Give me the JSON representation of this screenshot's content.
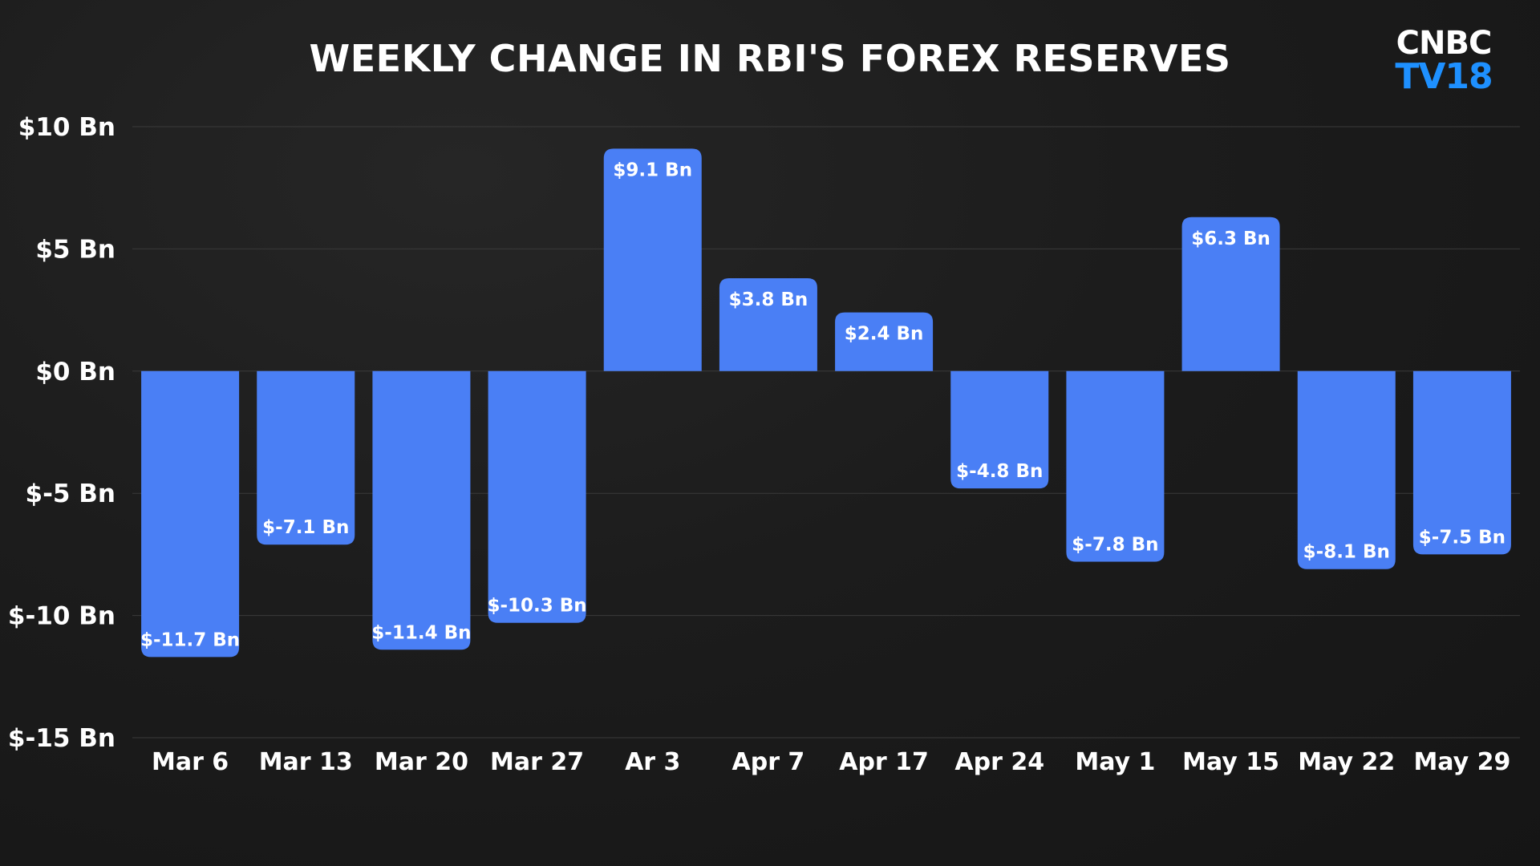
{
  "header": {
    "title": "WEEKLY CHANGE IN RBI'S FOREX RESERVES",
    "logo_line1": "CNBC",
    "logo_line2": "TV18",
    "logo_colors": {
      "line1": "#ffffff",
      "line2": "#1e90ff"
    }
  },
  "chart_data": {
    "type": "bar",
    "title": "WEEKLY CHANGE IN RBI'S FOREX RESERVES",
    "xlabel": "",
    "ylabel": "",
    "categories": [
      "Mar 6",
      "Mar 13",
      "Mar 20",
      "Mar 27",
      "Ar 3",
      "Apr 7",
      "Apr 17",
      "Apr 24",
      "May 1",
      "May 15",
      "May 22",
      "May 29"
    ],
    "values": [
      -11.7,
      -7.1,
      -11.4,
      -10.3,
      9.1,
      3.8,
      2.4,
      -4.8,
      -7.8,
      6.3,
      -8.1,
      -7.5
    ],
    "data_labels": [
      "$-11.7 Bn",
      "$-7.1 Bn",
      "$-11.4 Bn",
      "$-10.3 Bn",
      "$9.1 Bn",
      "$3.8 Bn",
      "$2.4 Bn",
      "$-4.8 Bn",
      "$-7.8 Bn",
      "$6.3 Bn",
      "$-8.1 Bn",
      "$-7.5 Bn"
    ],
    "ylim": [
      -15,
      10
    ],
    "yticks": [
      10,
      5,
      0,
      -5,
      -10,
      -15
    ],
    "ytick_labels": [
      "$10 Bn",
      "$5 Bn",
      "$0 Bn",
      "$-5 Bn",
      "$-10 Bn",
      "$-15 Bn"
    ],
    "grid": true,
    "legend": "none",
    "colors": {
      "bar": "#4a7ff5",
      "grid": "#3a3a3a",
      "text": "#ffffff",
      "background": "#1b1b1b"
    }
  }
}
